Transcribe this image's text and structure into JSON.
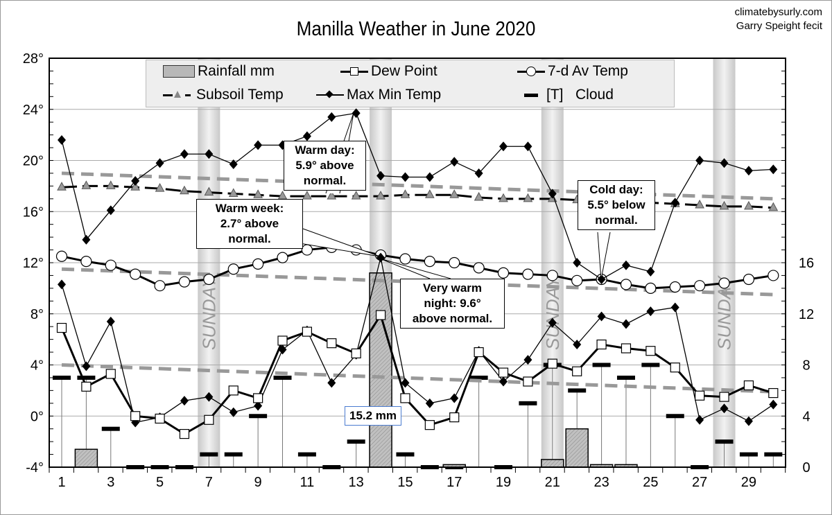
{
  "credit": {
    "site": "climatebysurly.com",
    "author": "Garry Speight fecit"
  },
  "chart_data": {
    "type": "line",
    "title": "Manilla Weather in June 2020",
    "x": [
      1,
      2,
      3,
      4,
      5,
      6,
      7,
      8,
      9,
      10,
      11,
      12,
      13,
      14,
      15,
      16,
      17,
      18,
      19,
      20,
      21,
      22,
      23,
      24,
      25,
      26,
      27,
      28,
      29,
      30
    ],
    "x_ticks": [
      "1",
      "3",
      "5",
      "7",
      "9",
      "11",
      "13",
      "15",
      "17",
      "19",
      "21",
      "23",
      "25",
      "27",
      "29"
    ],
    "y_left": {
      "range": [
        -4,
        28
      ],
      "ticks": [
        "-4°",
        "0°",
        "4°",
        "8°",
        "12°",
        "16°",
        "20°",
        "24°",
        "28°"
      ]
    },
    "y_right": {
      "range": [
        0,
        32
      ],
      "ticks": [
        "0",
        "4",
        "8",
        "12",
        "16"
      ]
    },
    "grid": true,
    "legend_placement": "top",
    "sunday_label": "SUNDAY",
    "sundays": [
      7,
      14,
      21,
      28
    ],
    "series": [
      {
        "name": "Rainfall mm",
        "axis": "right",
        "kind": "bar",
        "color": "#b8b8b8",
        "values": [
          0,
          1.4,
          0,
          0,
          0,
          0,
          0,
          0,
          0,
          0,
          0,
          0,
          0,
          15.2,
          0,
          0,
          0.2,
          0,
          0,
          0,
          0.6,
          3.0,
          0.2,
          0.2,
          0,
          0,
          0,
          0,
          0,
          0
        ]
      },
      {
        "name": "Dew Point",
        "axis": "left",
        "kind": "line-square",
        "values": [
          6.9,
          2.3,
          3.3,
          0,
          -0.2,
          -1.4,
          -0.3,
          2.0,
          1.4,
          5.9,
          6.6,
          5.7,
          4.9,
          7.9,
          1.4,
          -0.7,
          -0.1,
          5.0,
          3.4,
          2.7,
          4.1,
          3.5,
          5.6,
          5.3,
          5.1,
          3.8,
          1.6,
          1.5,
          2.4,
          1.8
        ]
      },
      {
        "name": "7-d Av Temp",
        "axis": "left",
        "kind": "line-circle",
        "values": [
          12.5,
          12.1,
          11.8,
          11.1,
          10.2,
          10.5,
          10.7,
          11.5,
          11.9,
          12.4,
          13.0,
          13.2,
          13.0,
          12.6,
          12.3,
          12.1,
          12.0,
          11.6,
          11.2,
          11.1,
          11.0,
          10.6,
          10.7,
          10.3,
          10.0,
          10.1,
          10.2,
          10.4,
          10.7,
          11.0
        ]
      },
      {
        "name": "Subsoil Temp",
        "axis": "left",
        "kind": "dash-triangle",
        "values": [
          17.9,
          18.0,
          18.0,
          17.9,
          17.8,
          17.6,
          17.5,
          17.4,
          17.3,
          17.2,
          17.2,
          17.2,
          17.2,
          17.2,
          17.3,
          17.3,
          17.3,
          17.1,
          17.0,
          17.0,
          17.0,
          16.9,
          16.9,
          16.8,
          16.7,
          16.6,
          16.5,
          16.4,
          16.4,
          16.3
        ]
      },
      {
        "name": "Max Min Temp",
        "axis": "left",
        "kind": "line-diamond",
        "max": [
          21.6,
          13.8,
          16.1,
          18.4,
          19.8,
          20.5,
          20.5,
          19.7,
          21.2,
          21.2,
          21.9,
          23.4,
          23.7,
          18.8,
          18.7,
          18.7,
          19.9,
          19.0,
          21.1,
          21.1,
          17.4,
          12.0,
          10.7,
          11.8,
          11.3,
          16.7,
          20.0,
          19.8,
          19.2,
          19.3
        ],
        "min": [
          10.3,
          3.9,
          7.4,
          -0.5,
          -0.1,
          1.2,
          1.5,
          0.3,
          0.8,
          5.2,
          6.7,
          2.6,
          4.8,
          12.4,
          2.6,
          1.0,
          1.4,
          5.1,
          2.7,
          4.4,
          7.3,
          5.6,
          7.8,
          7.2,
          8.2,
          8.5,
          -0.3,
          0.6,
          -0.4,
          0.9
        ]
      },
      {
        "name": "[T]   Cloud",
        "axis": "right",
        "kind": "dash-stem",
        "values": [
          7,
          7,
          3,
          0,
          0,
          0,
          1,
          1,
          4,
          7,
          1,
          0,
          2,
          8,
          1,
          0,
          0,
          7,
          0,
          5,
          8,
          6,
          8,
          7,
          8,
          4,
          0,
          2,
          1,
          1
        ]
      }
    ],
    "normals": {
      "color": "#999999",
      "max": [
        19.0,
        17.0
      ],
      "mean": [
        11.5,
        9.5
      ],
      "min": [
        4.0,
        1.9
      ]
    },
    "annotations": {
      "warm_day": [
        "Warm day:",
        "5.9° above",
        "normal."
      ],
      "warm_week": [
        "Warm week:",
        "2.7° above",
        "normal."
      ],
      "warm_night": [
        "Very warm",
        "night: 9.6°",
        "above normal."
      ],
      "cold_day": [
        "Cold day:",
        "5.5° below",
        "normal."
      ],
      "rain_label": "15.2 mm"
    }
  }
}
